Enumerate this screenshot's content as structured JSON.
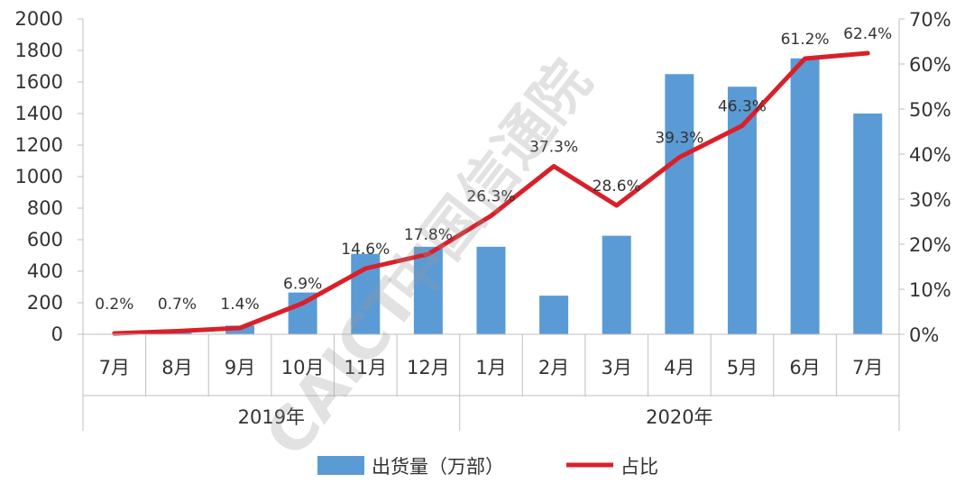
{
  "chart_data": {
    "type": "bar",
    "categories": [
      "7月",
      "8月",
      "9月",
      "10月",
      "11月",
      "12月",
      "1月",
      "2月",
      "3月",
      "4月",
      "5月",
      "6月",
      "7月"
    ],
    "groups": [
      {
        "label": "2019年",
        "count": 6
      },
      {
        "label": "2020年",
        "count": 7
      }
    ],
    "series": [
      {
        "name": "出货量（万部）",
        "type": "bar",
        "axis": "left",
        "color": "#5b9bd5",
        "values": [
          3,
          10,
          55,
          265,
          510,
          555,
          555,
          245,
          625,
          1650,
          1570,
          1750,
          1400
        ]
      },
      {
        "name": "占比",
        "type": "line",
        "axis": "right",
        "color": "#d9202a",
        "values": [
          0.2,
          0.7,
          1.4,
          6.9,
          14.6,
          17.8,
          26.3,
          37.3,
          28.6,
          39.3,
          46.3,
          61.2,
          62.4
        ],
        "labels": [
          "0.2%",
          "0.7%",
          "1.4%",
          "6.9%",
          "14.6%",
          "17.8%",
          "26.3%",
          "37.3%",
          "28.6%",
          "39.3%",
          "46.3%",
          "61.2%",
          "62.4%"
        ]
      }
    ],
    "y_left": {
      "min": 0,
      "max": 2000,
      "step": 200,
      "ticks": [
        "0",
        "200",
        "400",
        "600",
        "800",
        "1000",
        "1200",
        "1400",
        "1600",
        "1800",
        "2000"
      ]
    },
    "y_right": {
      "min": 0,
      "max": 70,
      "step": 10,
      "ticks": [
        "0%",
        "10%",
        "20%",
        "30%",
        "40%",
        "50%",
        "60%",
        "70%"
      ]
    },
    "grid": false,
    "legend_position": "bottom"
  },
  "watermark": {
    "latin": "CAICT",
    "cjk": "中国信通院"
  }
}
